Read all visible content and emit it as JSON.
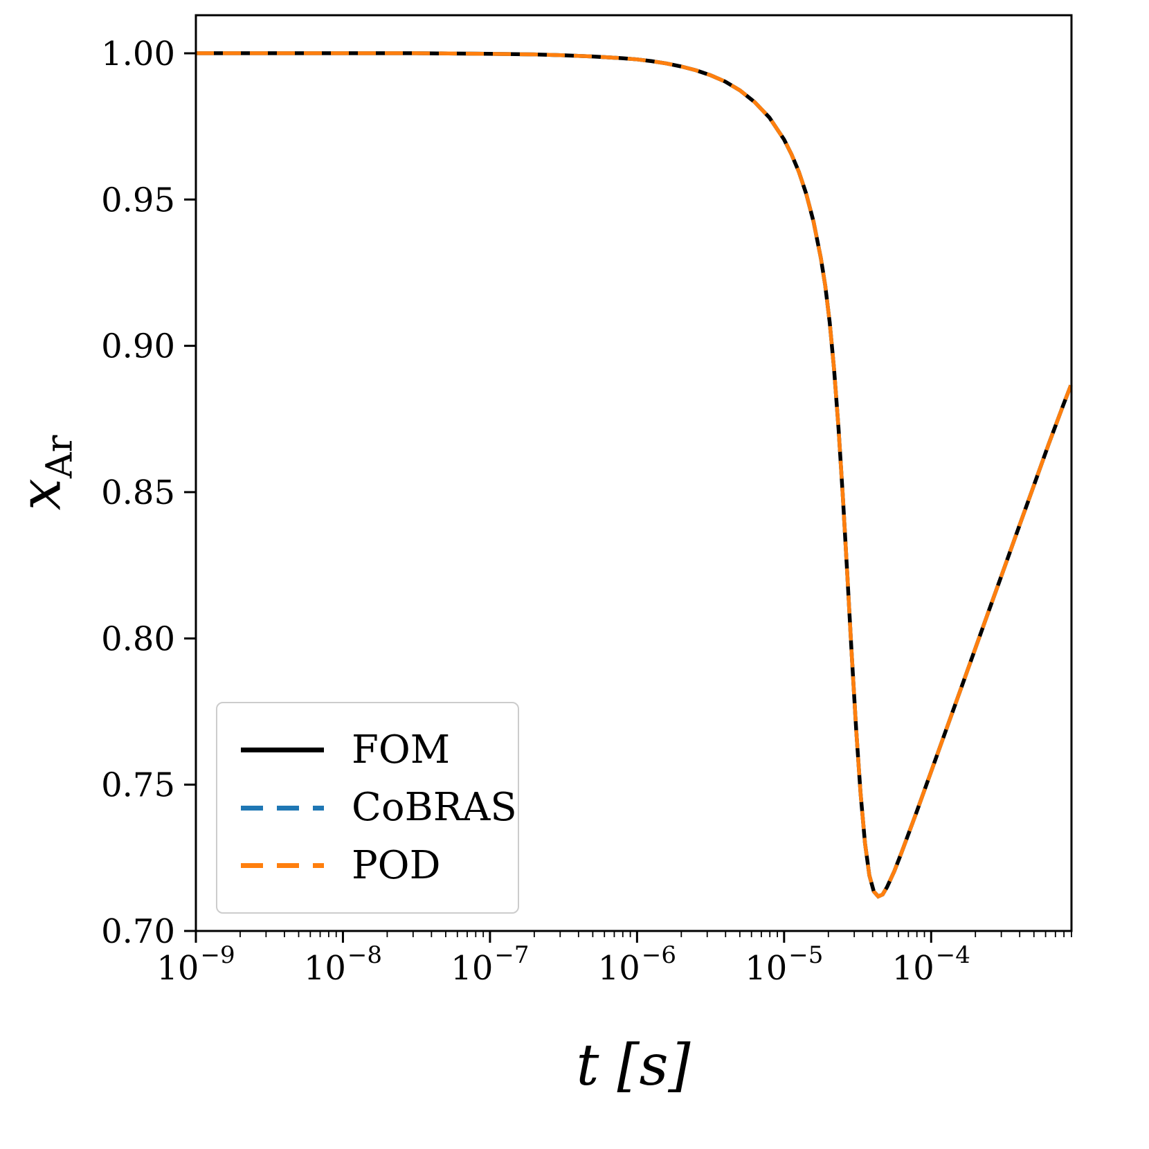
{
  "figure": {
    "background": "#ffffff"
  },
  "chart_data": {
    "type": "line",
    "title": "",
    "xlabel": "t [s]",
    "ylabel": "x_Ar",
    "ylabel_parts": {
      "var": "x",
      "sub": "Ar"
    },
    "xscale": "log",
    "yscale": "linear",
    "grid": false,
    "xlim": [
      1e-09,
      0.0009
    ],
    "ylim": [
      0.7,
      1.013
    ],
    "yticks": [
      1.0,
      0.95,
      0.9,
      0.85,
      0.8,
      0.75,
      0.7
    ],
    "ytick_labels": [
      "1.00",
      "0.95",
      "0.90",
      "0.85",
      "0.80",
      "0.75",
      "0.70"
    ],
    "xticks": [
      1e-09,
      1e-08,
      1e-07,
      1e-06,
      1e-05,
      0.0001
    ],
    "xtick_labels": [
      {
        "base": "10",
        "exp": "−9"
      },
      {
        "base": "10",
        "exp": "−8"
      },
      {
        "base": "10",
        "exp": "−7"
      },
      {
        "base": "10",
        "exp": "−6"
      },
      {
        "base": "10",
        "exp": "−5"
      },
      {
        "base": "10",
        "exp": "−4"
      }
    ],
    "legend": {
      "position": "lower left",
      "border_color": "#cccccc"
    },
    "series_overlap": true,
    "x_log10": [
      -9.0,
      -8.5,
      -8.0,
      -7.5,
      -7.0,
      -6.7,
      -6.5,
      -6.3,
      -6.1,
      -6.0,
      -5.9,
      -5.8,
      -5.7,
      -5.6,
      -5.5,
      -5.4,
      -5.3,
      -5.2,
      -5.1,
      -5.0,
      -4.95,
      -4.9,
      -4.85,
      -4.8,
      -4.75,
      -4.72,
      -4.69,
      -4.66,
      -4.63,
      -4.6,
      -4.57,
      -4.54,
      -4.51,
      -4.48,
      -4.45,
      -4.42,
      -4.39,
      -4.36,
      -4.33,
      -4.3,
      -4.25,
      -4.2,
      -4.1,
      -4.0,
      -3.9,
      -3.8,
      -3.7,
      -3.6,
      -3.5,
      -3.4,
      -3.3,
      -3.2,
      -3.1,
      -3.05
    ],
    "series": [
      {
        "name": "FOM",
        "color": "#000000",
        "linestyle": "solid",
        "values": [
          1.0,
          1.0,
          1.0,
          1.0,
          0.9998,
          0.9996,
          0.9993,
          0.9989,
          0.9983,
          0.9979,
          0.9973,
          0.9965,
          0.9955,
          0.9942,
          0.9925,
          0.9903,
          0.9873,
          0.9833,
          0.978,
          0.9705,
          0.9655,
          0.9595,
          0.952,
          0.9425,
          0.93,
          0.9205,
          0.908,
          0.892,
          0.872,
          0.848,
          0.8215,
          0.7945,
          0.769,
          0.747,
          0.73,
          0.719,
          0.7135,
          0.7118,
          0.7125,
          0.715,
          0.7205,
          0.727,
          0.7405,
          0.7545,
          0.7685,
          0.7825,
          0.7965,
          0.8105,
          0.8245,
          0.8385,
          0.8525,
          0.8665,
          0.88,
          0.8865
        ]
      },
      {
        "name": "CoBRAS",
        "color": "#1f77b4",
        "linestyle": "dashed",
        "values": [
          1.0,
          1.0,
          1.0,
          1.0,
          0.9998,
          0.9996,
          0.9993,
          0.9989,
          0.9983,
          0.9979,
          0.9973,
          0.9965,
          0.9955,
          0.9942,
          0.9925,
          0.9903,
          0.9873,
          0.9833,
          0.978,
          0.9705,
          0.9655,
          0.9595,
          0.952,
          0.9425,
          0.93,
          0.9205,
          0.908,
          0.892,
          0.872,
          0.848,
          0.8215,
          0.7945,
          0.769,
          0.747,
          0.73,
          0.719,
          0.7135,
          0.7118,
          0.7125,
          0.715,
          0.7205,
          0.727,
          0.7405,
          0.7545,
          0.7685,
          0.7825,
          0.7965,
          0.8105,
          0.8245,
          0.8385,
          0.8525,
          0.8665,
          0.88,
          0.8865
        ]
      },
      {
        "name": "POD",
        "color": "#ff7f0e",
        "linestyle": "dashed",
        "values": [
          1.0,
          1.0,
          1.0,
          1.0,
          0.9998,
          0.9996,
          0.9993,
          0.9989,
          0.9983,
          0.9979,
          0.9973,
          0.9965,
          0.9955,
          0.9942,
          0.9925,
          0.9903,
          0.9873,
          0.9833,
          0.978,
          0.9705,
          0.9655,
          0.9595,
          0.952,
          0.9425,
          0.93,
          0.9205,
          0.908,
          0.892,
          0.872,
          0.848,
          0.8215,
          0.7945,
          0.769,
          0.747,
          0.73,
          0.719,
          0.7135,
          0.7118,
          0.7125,
          0.715,
          0.7205,
          0.727,
          0.7405,
          0.7545,
          0.7685,
          0.7825,
          0.7965,
          0.8105,
          0.8245,
          0.8385,
          0.8525,
          0.8665,
          0.88,
          0.8865
        ]
      }
    ]
  }
}
